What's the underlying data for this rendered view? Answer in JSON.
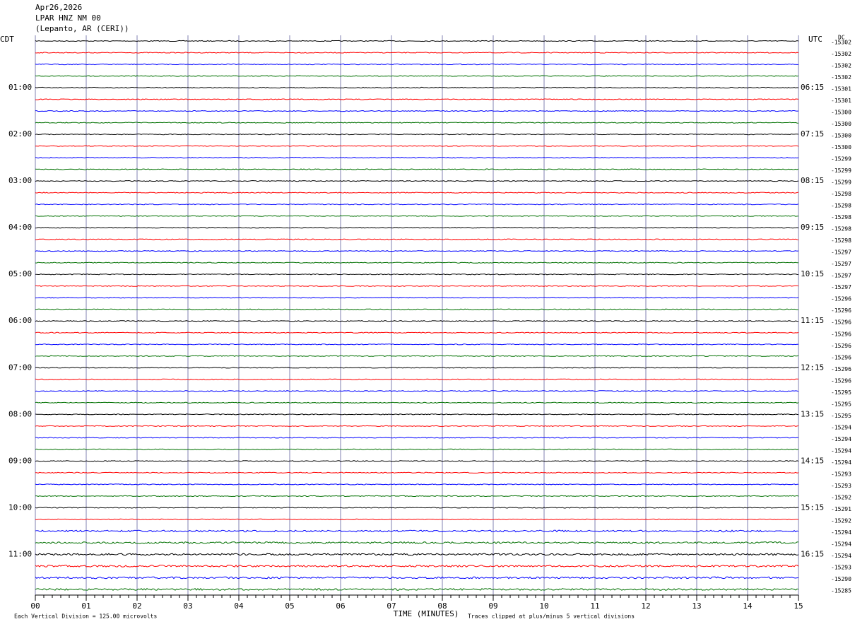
{
  "chart_data": {
    "type": "helicorder",
    "title_lines": [
      "Apr26,2026",
      "LPAR HNZ NM 00",
      "(Lepanto, AR (CERI))"
    ],
    "left_zone": "CDT",
    "right_zone": "UTC",
    "dc_label": "DC",
    "xlabel": "TIME (MINUTES)",
    "scale_note": "Each Vertical Division =  125.00 microvolts",
    "clip_note": "Traces clipped at plus/minus 5 vertical divisions",
    "xlim": [
      0,
      15
    ],
    "xticks": [
      {
        "value": 0,
        "label": "00"
      },
      {
        "value": 1,
        "label": "01"
      },
      {
        "value": 2,
        "label": "02"
      },
      {
        "value": 3,
        "label": "03"
      },
      {
        "value": 4,
        "label": "04"
      },
      {
        "value": 5,
        "label": "05"
      },
      {
        "value": 6,
        "label": "06"
      },
      {
        "value": 7,
        "label": "07"
      },
      {
        "value": 8,
        "label": "08"
      },
      {
        "value": 9,
        "label": "09"
      },
      {
        "value": 10,
        "label": "10"
      },
      {
        "value": 11,
        "label": "11"
      },
      {
        "value": 12,
        "label": "12"
      },
      {
        "value": 13,
        "label": "13"
      },
      {
        "value": 14,
        "label": "14"
      },
      {
        "value": 15,
        "label": "15"
      }
    ],
    "colors": [
      "#000000",
      "#ff0000",
      "#0000ff",
      "#007000"
    ],
    "cdt_hours": [
      "01:00",
      "02:00",
      "03:00",
      "04:00",
      "05:00",
      "06:00",
      "07:00",
      "08:00",
      "09:00",
      "10:00",
      "11:00"
    ],
    "utc_hours": [
      "06:15",
      "07:15",
      "08:15",
      "09:15",
      "10:15",
      "11:15",
      "12:15",
      "13:15",
      "14:15",
      "15:15",
      "16:15"
    ],
    "dc_values": [
      -15302,
      -15302,
      -15302,
      -15302,
      -15301,
      -15301,
      -15300,
      -15300,
      -15300,
      -15300,
      -15299,
      -15299,
      -15299,
      -15298,
      -15298,
      -15298,
      -15298,
      -15298,
      -15297,
      -15297,
      -15297,
      -15297,
      -15296,
      -15296,
      -15296,
      -15296,
      -15296,
      -15296,
      -15296,
      -15296,
      -15295,
      -15295,
      -15295,
      -15294,
      -15294,
      -15294,
      -15294,
      -15293,
      -15293,
      -15292,
      -15291,
      -15292,
      -15294,
      -15294,
      -15294,
      -15293,
      -15290,
      -15285
    ]
  }
}
